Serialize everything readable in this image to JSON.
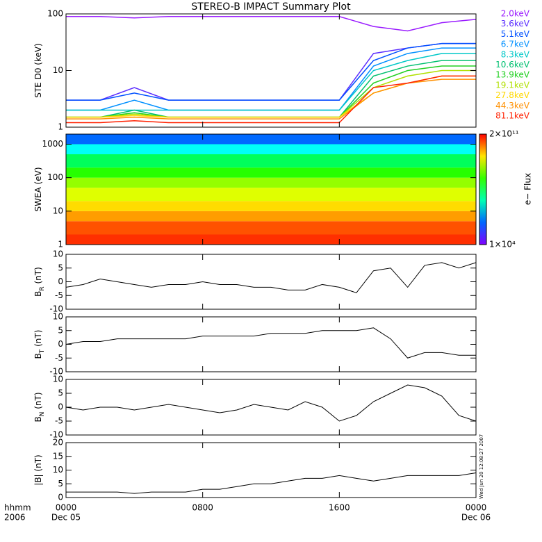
{
  "title": "STEREO-B IMPACT Summary Plot",
  "timestamp": "Wed Jun 20 12:08:27 2007",
  "chart_data": [
    {
      "type": "line",
      "ylabel": "STE D0 (keV)",
      "log": true,
      "ylim": [
        1,
        100
      ],
      "yticks": [
        1,
        10,
        100
      ],
      "xlim": [
        0,
        24
      ],
      "x": [
        0,
        2,
        4,
        6,
        8,
        10,
        12,
        14,
        16,
        18,
        20,
        22,
        24
      ],
      "series": [
        {
          "name": "2.0keV",
          "color": "#9a1cff",
          "values": [
            90,
            90,
            85,
            90,
            90,
            90,
            90,
            90,
            90,
            60,
            50,
            70,
            80
          ]
        },
        {
          "name": "3.6keV",
          "color": "#5a2cff",
          "values": [
            3,
            3,
            5,
            3,
            3,
            3,
            3,
            3,
            3,
            20,
            25,
            30,
            30
          ]
        },
        {
          "name": "5.1keV",
          "color": "#0050ff",
          "values": [
            3,
            3,
            4,
            3,
            3,
            3,
            3,
            3,
            3,
            15,
            25,
            30,
            30
          ]
        },
        {
          "name": "6.7keV",
          "color": "#0090ff",
          "values": [
            2,
            2,
            3,
            2,
            2,
            2,
            2,
            2,
            2,
            12,
            20,
            25,
            25
          ]
        },
        {
          "name": "8.3keV",
          "color": "#00c8c8",
          "values": [
            2,
            2,
            2,
            2,
            2,
            2,
            2,
            2,
            2,
            10,
            15,
            20,
            20
          ]
        },
        {
          "name": "10.6keV",
          "color": "#00c070",
          "values": [
            1.5,
            1.5,
            2,
            1.5,
            1.5,
            1.5,
            1.5,
            1.5,
            1.5,
            8,
            12,
            15,
            15
          ]
        },
        {
          "name": "13.9keV",
          "color": "#20d020",
          "values": [
            1.5,
            1.5,
            1.8,
            1.5,
            1.5,
            1.5,
            1.5,
            1.5,
            1.5,
            6,
            10,
            12,
            12
          ]
        },
        {
          "name": "19.1keV",
          "color": "#b0e000",
          "values": [
            1.5,
            1.5,
            1.7,
            1.5,
            1.5,
            1.5,
            1.5,
            1.5,
            1.5,
            5,
            8,
            10,
            10
          ]
        },
        {
          "name": "27.8keV",
          "color": "#ffd800",
          "values": [
            1.5,
            1.5,
            1.6,
            1.5,
            1.5,
            1.5,
            1.5,
            1.5,
            1.5,
            4,
            6,
            8,
            8
          ]
        },
        {
          "name": "44.3keV",
          "color": "#ff9000",
          "values": [
            1.4,
            1.4,
            1.5,
            1.4,
            1.4,
            1.4,
            1.4,
            1.4,
            1.4,
            4,
            6,
            7,
            7
          ]
        },
        {
          "name": "81.1keV",
          "color": "#ff2000",
          "values": [
            1.2,
            1.2,
            1.3,
            1.2,
            1.2,
            1.2,
            1.2,
            1.2,
            1.2,
            5,
            6,
            8,
            8
          ]
        }
      ]
    },
    {
      "type": "heatmap",
      "ylabel": "SWEA (eV)",
      "log": true,
      "ylim": [
        1,
        2000
      ],
      "yticks": [
        1,
        10,
        100,
        1000
      ],
      "xlim": [
        0,
        24
      ],
      "y_bins": [
        1,
        2,
        5,
        10,
        20,
        50,
        100,
        200,
        500,
        1000,
        2000
      ],
      "values": [
        100000000000.0,
        60000000000.0,
        20000000000.0,
        8000000000.0,
        3000000000.0,
        1000000000.0,
        200000000.0,
        30000000.0,
        3000000.0,
        300000.0
      ],
      "zlim": [
        10000.0,
        200000000000.0
      ],
      "zlabel": "e− Flux",
      "zticks": [
        {
          "value": 200000000000.0,
          "label": "2×10¹¹"
        },
        {
          "value": 10000.0,
          "label": "1×10⁴"
        }
      ]
    },
    {
      "type": "line",
      "ylabel": "B",
      "ylabel_sub": "R",
      "ylabel_unit": " (nT)",
      "ylim": [
        -10,
        10
      ],
      "yticks": [
        -10,
        -5,
        0,
        5,
        10
      ],
      "xlim": [
        0,
        24
      ],
      "x": [
        0,
        1,
        2,
        3,
        4,
        5,
        6,
        7,
        8,
        9,
        10,
        11,
        12,
        13,
        14,
        15,
        16,
        17,
        18,
        19,
        20,
        21,
        22,
        23,
        24
      ],
      "values": [
        -2,
        -1,
        1,
        0,
        -1,
        -2,
        -1,
        -1,
        0,
        -1,
        -1,
        -2,
        -2,
        -3,
        -3,
        -1,
        -2,
        -4,
        4,
        5,
        -2,
        6,
        7,
        5,
        7
      ],
      "color": "#000000"
    },
    {
      "type": "line",
      "ylabel": "B",
      "ylabel_sub": "T",
      "ylabel_unit": " (nT)",
      "ylim": [
        -10,
        10
      ],
      "yticks": [
        -10,
        -5,
        0,
        5,
        10
      ],
      "xlim": [
        0,
        24
      ],
      "x": [
        0,
        1,
        2,
        3,
        4,
        5,
        6,
        7,
        8,
        9,
        10,
        11,
        12,
        13,
        14,
        15,
        16,
        17,
        18,
        19,
        20,
        21,
        22,
        23,
        24
      ],
      "values": [
        0,
        1,
        1,
        2,
        2,
        2,
        2,
        2,
        3,
        3,
        3,
        3,
        4,
        4,
        4,
        5,
        5,
        5,
        6,
        2,
        -5,
        -3,
        -3,
        -4,
        -4
      ],
      "color": "#000000"
    },
    {
      "type": "line",
      "ylabel": "B",
      "ylabel_sub": "N",
      "ylabel_unit": " (nT)",
      "ylim": [
        -10,
        10
      ],
      "yticks": [
        -10,
        -5,
        0,
        5,
        10
      ],
      "xlim": [
        0,
        24
      ],
      "x": [
        0,
        1,
        2,
        3,
        4,
        5,
        6,
        7,
        8,
        9,
        10,
        11,
        12,
        13,
        14,
        15,
        16,
        17,
        18,
        19,
        20,
        21,
        22,
        23,
        24
      ],
      "values": [
        0,
        -1,
        0,
        0,
        -1,
        0,
        1,
        0,
        -1,
        -2,
        -1,
        1,
        0,
        -1,
        2,
        0,
        -5,
        -3,
        2,
        5,
        8,
        7,
        4,
        -3,
        -5
      ],
      "color": "#000000"
    },
    {
      "type": "line",
      "ylabel": "|B| (nT)",
      "ylim": [
        0,
        20
      ],
      "yticks": [
        0,
        5,
        10,
        15,
        20
      ],
      "xlim": [
        0,
        24
      ],
      "x": [
        0,
        1,
        2,
        3,
        4,
        5,
        6,
        7,
        8,
        9,
        10,
        11,
        12,
        13,
        14,
        15,
        16,
        17,
        18,
        19,
        20,
        21,
        22,
        23,
        24
      ],
      "values": [
        2,
        2,
        2,
        2,
        1.5,
        2,
        2,
        2,
        3,
        3,
        4,
        5,
        5,
        6,
        7,
        7,
        8,
        7,
        6,
        7,
        8,
        8,
        8,
        8,
        9
      ],
      "color": "#000000",
      "x_row_title": "hhmm",
      "x_row_year": "2006",
      "xticks": [
        {
          "value": 0,
          "label": "0000",
          "date": "Dec 05"
        },
        {
          "value": 8,
          "label": "0800"
        },
        {
          "value": 16,
          "label": "1600"
        },
        {
          "value": 24,
          "label": "0000",
          "date": "Dec 06"
        }
      ]
    }
  ]
}
